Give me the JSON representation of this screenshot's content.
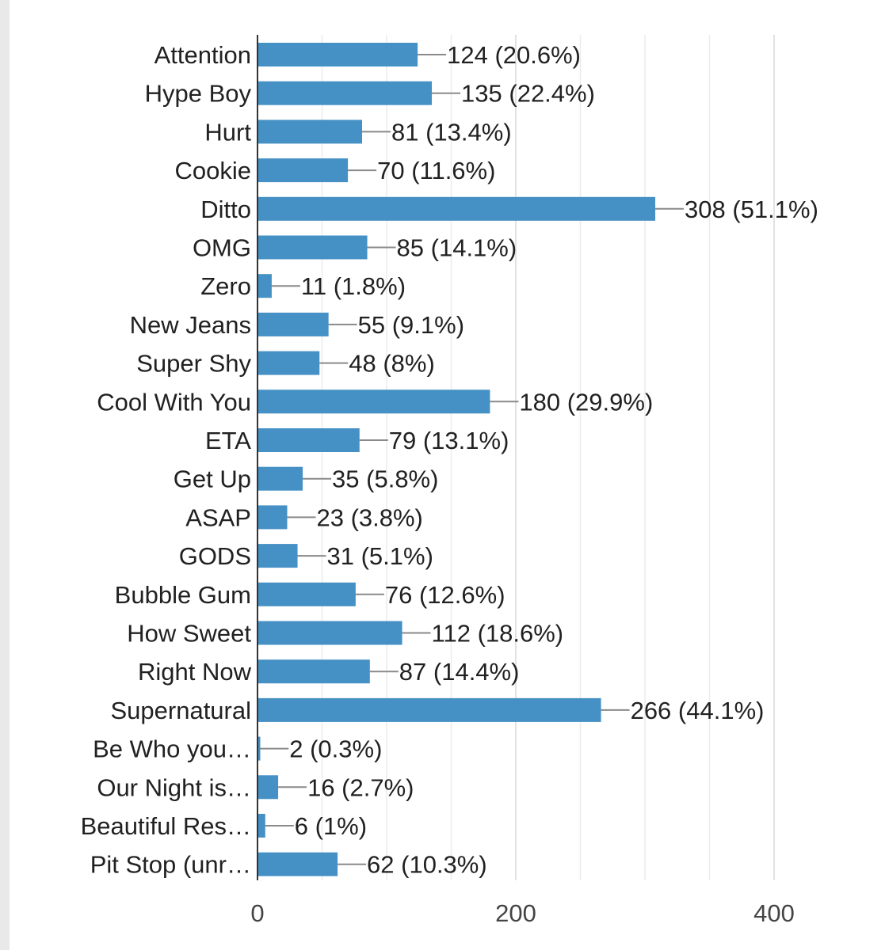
{
  "chart_data": {
    "type": "bar",
    "orientation": "horizontal",
    "categories": [
      "Attention",
      "Hype Boy",
      "Hurt",
      "Cookie",
      "Ditto",
      "OMG",
      "Zero",
      "New Jeans",
      "Super Shy",
      "Cool With You",
      "ETA",
      "Get Up",
      "ASAP",
      "GODS",
      "Bubble Gum",
      "How Sweet",
      "Right Now",
      "Supernatural",
      "Be Who you…",
      "Our Night is…",
      "Beautiful Res…",
      "Pit Stop (unr…"
    ],
    "values": [
      124,
      135,
      81,
      70,
      308,
      85,
      11,
      55,
      48,
      180,
      79,
      35,
      23,
      31,
      76,
      112,
      87,
      266,
      2,
      16,
      6,
      62
    ],
    "value_labels": [
      "124 (20.6%)",
      "135 (22.4%)",
      "81 (13.4%)",
      "70 (11.6%)",
      "308 (51.1%)",
      "85 (14.1%)",
      "11 (1.8%)",
      "55 (9.1%)",
      "48 (8%)",
      "180 (29.9%)",
      "79 (13.1%)",
      "35 (5.8%)",
      "23 (3.8%)",
      "31 (5.1%)",
      "76 (12.6%)",
      "112 (18.6%)",
      "87 (14.4%)",
      "266 (44.1%)",
      "2 (0.3%)",
      "16 (2.7%)",
      "6 (1%)",
      "62 (10.3%)"
    ],
    "xlim": [
      0,
      400
    ],
    "xticks": [
      0,
      200,
      400
    ],
    "grid": true,
    "bar_color": "#4590c4",
    "title": "",
    "xlabel": "",
    "ylabel": ""
  }
}
